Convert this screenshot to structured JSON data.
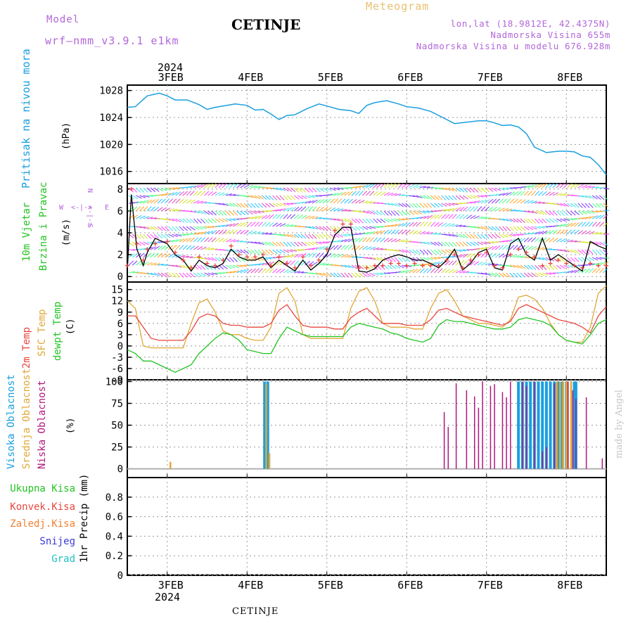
{
  "header": {
    "model_label": "Model",
    "model_name": "wrf—nmm_v3.9.1  e1km",
    "station": "CETINJE",
    "product": "Meteogram",
    "location": "lon,lat (18.9812E, 42.4375N)",
    "elevation": "Nadmorska Visina 655m",
    "elevation_model": "Nadmorska Visina u modelu 676.928m"
  },
  "footer": {
    "station": "CETINJE",
    "credit": "made by Angel"
  },
  "time_axis": {
    "year": "2024",
    "ticks": [
      "3FEB",
      "4FEB",
      "5FEB",
      "6FEB",
      "7FEB",
      "8FEB"
    ]
  },
  "panels": {
    "pressure": {
      "ylabel": "Pritisak na nivou mora",
      "unit": "(hPa)"
    },
    "wind": {
      "ylabel_1": "10m Vjetar",
      "ylabel_2": "Brzina i Pravac",
      "unit": "(m/s)",
      "compass": {
        "n": "N",
        "s": "S",
        "w": "W",
        "e": "E",
        "ns": "<-|->",
        "we": "<-|->"
      }
    },
    "temp": {
      "ylabel_1": "2m Temp",
      "ylabel_2": "SFC Temp",
      "ylabel_3": "dewpt Temp",
      "unit": "(C)"
    },
    "cloud": {
      "ylabel_1": "Visoka Oblacnost",
      "ylabel_2": "Srednja Oblacnost",
      "ylabel_3": "Niska Oblacnost",
      "unit": "(%)"
    },
    "precip": {
      "ylabel": "1hr Precip (mm)",
      "legend": [
        "Ukupna Kisa",
        "Konvek.Kisa",
        "Zaledj.Kisa",
        "Snijeg",
        "Grad"
      ]
    }
  },
  "colors": {
    "pressure": "#1a9fe0",
    "temp2m": "#e8473f",
    "sfc": "#e0a838",
    "dew": "#22c422",
    "wind_speed": "#000000",
    "gust": "#e8473f",
    "cloud_high": "#1a9fe0",
    "cloud_mid": "#e0a838",
    "cloud_low": "#b0187e",
    "precip_total": "#22c422",
    "precip_conv": "#e8473f",
    "precip_frz": "#f08030",
    "precip_snow": "#3a3ad8",
    "precip_hail": "#20c0c0"
  },
  "chart_data": [
    {
      "type": "line",
      "title": "Pritisak na nivou mora",
      "ylabel": "(hPa)",
      "ylim": [
        1014.2,
        1028.8
      ],
      "yticks": [
        1016,
        1020,
        1024,
        1028
      ],
      "x_days": [
        2.5,
        2.6,
        2.75,
        2.9,
        3.0,
        3.1,
        3.25,
        3.4,
        3.5,
        3.6,
        3.75,
        3.85,
        4.0,
        4.1,
        4.2,
        4.3,
        4.4,
        4.5,
        4.6,
        4.75,
        4.9,
        5.0,
        5.15,
        5.3,
        5.4,
        5.5,
        5.6,
        5.75,
        5.9,
        6.0,
        6.15,
        6.3,
        6.45,
        6.6,
        6.75,
        6.9,
        7.0,
        7.1,
        7.2,
        7.3,
        7.4,
        7.5,
        7.6,
        7.75,
        7.9,
        8.0,
        8.1,
        8.2,
        8.3,
        8.4,
        8.5
      ],
      "values": [
        1025.5,
        1025.6,
        1027.2,
        1027.6,
        1027.2,
        1026.6,
        1026.6,
        1025.9,
        1025.2,
        1025.5,
        1025.8,
        1026.0,
        1025.8,
        1025.1,
        1025.2,
        1024.5,
        1023.7,
        1024.3,
        1024.4,
        1025.3,
        1026.0,
        1025.7,
        1025.2,
        1025.0,
        1024.6,
        1025.8,
        1026.2,
        1026.5,
        1026.0,
        1025.6,
        1025.4,
        1024.9,
        1024.0,
        1023.1,
        1023.3,
        1023.5,
        1023.5,
        1023.2,
        1022.8,
        1022.9,
        1022.6,
        1021.6,
        1019.6,
        1018.8,
        1019.0,
        1019.0,
        1018.9,
        1018.3,
        1018.1,
        1017.0,
        1015.5
      ],
      "series": [
        {
          "name": "Pritisak na nivou mora",
          "values": []
        }
      ]
    },
    {
      "type": "line",
      "title": "10m Vjetar Brzina i Pravac",
      "ylabel": "(m/s)",
      "ylim": [
        -0.5,
        8.5
      ],
      "yticks": [
        0,
        2,
        4,
        6,
        8
      ],
      "x_days": [
        2.5,
        2.55,
        2.62,
        2.7,
        2.75,
        2.85,
        3.0,
        3.1,
        3.2,
        3.3,
        3.4,
        3.5,
        3.6,
        3.7,
        3.8,
        3.9,
        4.0,
        4.1,
        4.2,
        4.3,
        4.4,
        4.5,
        4.6,
        4.7,
        4.8,
        4.9,
        5.0,
        5.1,
        5.2,
        5.3,
        5.4,
        5.5,
        5.6,
        5.7,
        5.8,
        5.9,
        6.0,
        6.1,
        6.2,
        6.3,
        6.4,
        6.5,
        6.6,
        6.7,
        6.8,
        6.9,
        7.0,
        7.1,
        7.2,
        7.3,
        7.4,
        7.5,
        7.6,
        7.7,
        7.8,
        7.9,
        8.0,
        8.1,
        8.2,
        8.3,
        8.4,
        8.5
      ],
      "series": [
        {
          "name": "speed",
          "values": [
            0.5,
            7.5,
            2.5,
            1.0,
            2.2,
            3.5,
            3.0,
            2.0,
            1.5,
            0.5,
            1.5,
            1.0,
            0.8,
            1.2,
            2.5,
            1.8,
            1.5,
            1.5,
            1.8,
            0.8,
            1.5,
            1.0,
            0.5,
            1.5,
            0.6,
            1.2,
            2.0,
            3.8,
            4.5,
            4.5,
            0.5,
            0.4,
            0.7,
            1.5,
            1.8,
            2.0,
            1.8,
            1.5,
            1.5,
            1.2,
            0.8,
            1.5,
            2.5,
            0.6,
            1.2,
            2.2,
            2.5,
            0.8,
            0.6,
            3.0,
            3.5,
            2.0,
            1.5,
            3.5,
            1.5,
            2.0,
            1.5,
            1.0,
            0.5,
            3.2,
            2.8,
            2.5
          ]
        },
        {
          "name": "gust",
          "values": [
            1.0,
            8.0,
            3.0,
            1.5,
            2.5,
            3.0,
            3.2,
            2.2,
            1.5,
            0.8,
            1.8,
            1.2,
            1.0,
            1.5,
            2.8,
            2.0,
            1.8,
            1.8,
            2.0,
            1.0,
            1.8,
            1.2,
            0.8,
            1.8,
            1.0,
            1.5,
            2.5,
            4.2,
            4.8,
            4.8,
            0.8,
            0.8,
            1.0,
            1.0,
            1.2,
            1.2,
            1.0,
            1.2,
            1.0,
            1.0,
            1.0,
            1.5,
            2.0,
            0.8,
            1.5,
            2.0,
            2.2,
            1.0,
            0.8,
            2.0,
            2.5,
            2.2,
            1.8,
            1.0,
            1.2,
            1.5,
            1.2,
            1.0,
            0.8,
            1.2,
            1.0,
            1.0
          ]
        }
      ]
    },
    {
      "type": "line",
      "title": "2m Temp / SFC Temp / dewpt Temp",
      "ylabel": "(C)",
      "ylim": [
        -9,
        17
      ],
      "yticks": [
        -9,
        -6,
        -3,
        0,
        3,
        6,
        9,
        12,
        15
      ],
      "x_days": [
        2.5,
        2.6,
        2.7,
        2.8,
        2.9,
        3.0,
        3.1,
        3.2,
        3.3,
        3.4,
        3.5,
        3.6,
        3.7,
        3.8,
        3.9,
        4.0,
        4.1,
        4.2,
        4.3,
        4.4,
        4.5,
        4.6,
        4.7,
        4.8,
        4.9,
        5.0,
        5.1,
        5.2,
        5.3,
        5.4,
        5.5,
        5.6,
        5.7,
        5.8,
        5.9,
        6.0,
        6.1,
        6.2,
        6.3,
        6.4,
        6.5,
        6.6,
        6.7,
        6.8,
        6.9,
        7.0,
        7.1,
        7.2,
        7.3,
        7.4,
        7.5,
        7.6,
        7.7,
        7.8,
        7.9,
        8.0,
        8.1,
        8.2,
        8.3,
        8.4,
        8.5
      ],
      "series": [
        {
          "name": "2m Temp",
          "values": [
            8,
            8,
            5,
            2,
            1.5,
            1.5,
            1.5,
            1.5,
            4,
            7.5,
            8.5,
            8,
            6,
            5.5,
            5.5,
            5,
            5,
            5,
            6,
            9.5,
            11,
            8,
            5.5,
            5,
            5,
            5,
            4.5,
            4.5,
            7.5,
            9,
            10,
            8,
            6,
            6,
            6,
            5.5,
            5.5,
            5.5,
            7,
            9.5,
            10,
            9,
            8,
            7.5,
            7,
            6.5,
            6,
            5.5,
            6.5,
            10,
            11,
            10,
            9,
            8,
            7,
            6.5,
            6,
            5,
            3.5,
            8,
            10.5
          ]
        },
        {
          "name": "SFC Temp",
          "values": [
            12,
            10,
            0,
            -0.5,
            -0.5,
            -0.5,
            -0.5,
            -0.5,
            6,
            11.5,
            12.5,
            9,
            4,
            3,
            3,
            2,
            1.5,
            1.5,
            5,
            14,
            15.5,
            12,
            3,
            2,
            2,
            2,
            2,
            2,
            10,
            14.5,
            15.5,
            12,
            6,
            5,
            5,
            5,
            4.5,
            4.5,
            10,
            14,
            15,
            12,
            8,
            7,
            6,
            6,
            5.5,
            5,
            7,
            13,
            13.5,
            12.5,
            10,
            6,
            3,
            1.5,
            1,
            1,
            5,
            14,
            16
          ]
        },
        {
          "name": "dewpt Temp",
          "values": [
            -1,
            -2,
            -4,
            -4,
            -5,
            -6,
            -7,
            -6,
            -5,
            -2,
            0,
            2,
            3.5,
            3,
            1.5,
            -1,
            -1.5,
            -2,
            -2,
            2,
            5,
            4,
            3,
            2.5,
            2.5,
            2.5,
            2.5,
            2.5,
            5,
            6,
            5.5,
            5,
            4.5,
            3.5,
            3,
            2,
            1.5,
            1,
            2,
            5.5,
            7,
            6.5,
            6.5,
            6,
            5.5,
            5,
            4.5,
            4.5,
            5,
            7,
            7.5,
            7,
            6.5,
            5.5,
            3,
            1.5,
            1,
            0.5,
            3,
            6,
            7
          ]
        }
      ]
    },
    {
      "type": "bar",
      "title": "Visoka / Srednja / Niska Oblacnost",
      "ylabel": "(%)",
      "ylim": [
        -10,
        102
      ],
      "yticks": [
        0,
        25,
        50,
        75,
        100
      ],
      "series": [
        {
          "name": "Visoka Oblacnost",
          "x_days": [
            4.22,
            4.26,
            7.4,
            7.45,
            7.5,
            7.55,
            7.6,
            7.65,
            7.7,
            7.75,
            7.8,
            7.85,
            7.9,
            7.95,
            8.0,
            8.1,
            8.12
          ],
          "values": [
            100,
            100,
            100,
            100,
            100,
            100,
            100,
            100,
            100,
            100,
            100,
            100,
            100,
            100,
            100,
            100,
            100
          ]
        },
        {
          "name": "Srednja Oblacnost",
          "x_days": [
            3.04,
            4.24,
            4.28,
            7.88,
            7.92,
            7.96,
            8.0,
            8.02,
            8.06
          ],
          "values": [
            8,
            98,
            18,
            100,
            100,
            100,
            100,
            100,
            100
          ]
        },
        {
          "name": "Niska Oblacnost",
          "x_days": [
            6.47,
            6.52,
            6.62,
            6.75,
            6.85,
            6.9,
            6.95,
            7.05,
            7.1,
            7.2,
            7.25,
            7.3,
            7.45,
            7.5,
            7.6,
            7.7,
            7.75,
            7.85,
            8.02,
            8.08,
            8.12,
            8.25,
            8.45
          ],
          "values": [
            65,
            48,
            98,
            90,
            83,
            70,
            100,
            95,
            97,
            88,
            82,
            100,
            100,
            95,
            100,
            20,
            25,
            98,
            100,
            90,
            80,
            82,
            12
          ]
        }
      ]
    },
    {
      "type": "bar",
      "title": "1hr Precip",
      "ylabel": "1hr Precip (mm)",
      "ylim": [
        0,
        1.0
      ],
      "yticks": [
        0,
        0.2,
        0.4,
        0.6,
        0.8
      ],
      "series": [
        {
          "name": "Ukupna Kisa",
          "x_days": [],
          "values": []
        },
        {
          "name": "Konvek.Kisa",
          "x_days": [],
          "values": []
        },
        {
          "name": "Zaledj.Kisa",
          "x_days": [],
          "values": []
        },
        {
          "name": "Snijeg",
          "x_days": [],
          "values": []
        },
        {
          "name": "Grad",
          "x_days": [],
          "values": []
        }
      ]
    }
  ]
}
